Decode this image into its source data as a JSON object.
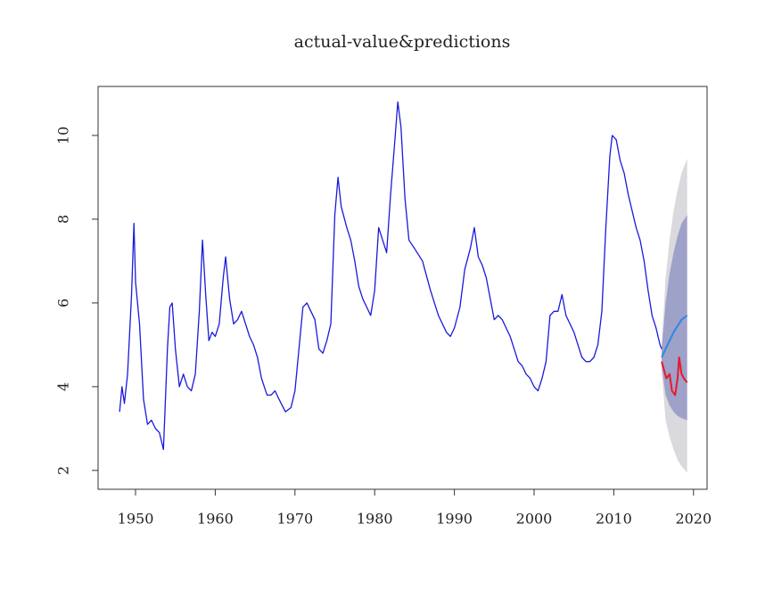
{
  "chart_data": {
    "type": "line",
    "title": "actual-value&predictions",
    "xlim": [
      1945.3,
      2021.7
    ],
    "ylim": [
      1.55,
      11.17
    ],
    "xticks": [
      1950,
      1960,
      1970,
      1980,
      1990,
      2000,
      2010,
      2020
    ],
    "yticks": [
      2,
      4,
      6,
      8,
      10
    ],
    "bands": [
      {
        "color": "#d9d9de",
        "x": [
          2016.0,
          2016.5,
          2017.0,
          2017.5,
          2018.0,
          2018.5,
          2019.2
        ],
        "lower": [
          4.4,
          3.2,
          2.8,
          2.5,
          2.25,
          2.1,
          1.95
        ],
        "upper": [
          5.0,
          6.6,
          7.5,
          8.2,
          8.7,
          9.1,
          9.45
        ]
      },
      {
        "color": "#9ea1c8",
        "x": [
          2016.0,
          2016.5,
          2017.0,
          2017.5,
          2018.0,
          2018.5,
          2019.2
        ],
        "lower": [
          4.5,
          3.8,
          3.55,
          3.4,
          3.3,
          3.25,
          3.2
        ],
        "upper": [
          4.9,
          6.0,
          6.7,
          7.2,
          7.6,
          7.9,
          8.1
        ]
      }
    ],
    "series": [
      {
        "color": "#1a1adb",
        "x": [
          1948.0,
          1948.3,
          1948.6,
          1949.0,
          1949.5,
          1949.8,
          1950.0,
          1950.5,
          1951.0,
          1951.5,
          1952.0,
          1952.5,
          1953.0,
          1953.5,
          1954.0,
          1954.3,
          1954.6,
          1955.0,
          1955.5,
          1956.0,
          1956.5,
          1957.0,
          1957.5,
          1958.0,
          1958.4,
          1958.8,
          1959.2,
          1959.6,
          1960.0,
          1960.5,
          1961.0,
          1961.3,
          1961.8,
          1962.3,
          1962.8,
          1963.3,
          1963.8,
          1964.3,
          1964.8,
          1965.3,
          1965.8,
          1966.5,
          1967.0,
          1967.5,
          1968.0,
          1968.8,
          1969.5,
          1970.0,
          1970.5,
          1971.0,
          1971.5,
          1972.0,
          1972.5,
          1973.0,
          1973.5,
          1974.0,
          1974.5,
          1975.0,
          1975.4,
          1975.8,
          1976.5,
          1977.0,
          1977.5,
          1978.0,
          1978.5,
          1979.0,
          1979.5,
          1980.0,
          1980.5,
          1981.0,
          1981.5,
          1982.0,
          1982.5,
          1982.9,
          1983.3,
          1983.8,
          1984.3,
          1985.0,
          1986.0,
          1987.0,
          1987.5,
          1988.0,
          1989.0,
          1989.5,
          1990.0,
          1990.7,
          1991.3,
          1992.0,
          1992.5,
          1993.0,
          1993.5,
          1994.0,
          1994.5,
          1995.0,
          1995.5,
          1996.0,
          1996.5,
          1997.0,
          1997.5,
          1998.0,
          1998.5,
          1999.0,
          1999.5,
          2000.0,
          2000.5,
          2001.0,
          2001.5,
          2002.0,
          2002.5,
          2003.0,
          2003.5,
          2004.0,
          2004.5,
          2005.0,
          2005.5,
          2006.0,
          2006.5,
          2007.0,
          2007.5,
          2008.0,
          2008.5,
          2009.0,
          2009.5,
          2009.8,
          2010.3,
          2010.8,
          2011.3,
          2011.8,
          2012.3,
          2012.8,
          2013.3,
          2013.8,
          2014.3,
          2014.8,
          2015.3,
          2015.8,
          2016.0
        ],
        "values": [
          3.4,
          4.0,
          3.6,
          4.3,
          6.2,
          7.9,
          6.5,
          5.5,
          3.7,
          3.1,
          3.2,
          3.0,
          2.9,
          2.5,
          4.9,
          5.9,
          6.0,
          4.9,
          4.0,
          4.3,
          4.0,
          3.9,
          4.3,
          5.8,
          7.5,
          6.2,
          5.1,
          5.3,
          5.2,
          5.5,
          6.6,
          7.1,
          6.1,
          5.5,
          5.6,
          5.8,
          5.5,
          5.2,
          5.0,
          4.7,
          4.2,
          3.8,
          3.8,
          3.9,
          3.7,
          3.4,
          3.5,
          3.9,
          4.9,
          5.9,
          6.0,
          5.8,
          5.6,
          4.9,
          4.8,
          5.1,
          5.5,
          8.1,
          9.0,
          8.3,
          7.8,
          7.5,
          7.0,
          6.4,
          6.1,
          5.9,
          5.7,
          6.3,
          7.8,
          7.5,
          7.2,
          8.6,
          9.8,
          10.8,
          10.2,
          8.5,
          7.5,
          7.3,
          7.0,
          6.3,
          6.0,
          5.7,
          5.3,
          5.2,
          5.4,
          5.9,
          6.8,
          7.3,
          7.8,
          7.1,
          6.9,
          6.6,
          6.1,
          5.6,
          5.7,
          5.6,
          5.4,
          5.2,
          4.9,
          4.6,
          4.5,
          4.3,
          4.2,
          4.0,
          3.9,
          4.2,
          4.6,
          5.7,
          5.8,
          5.8,
          6.2,
          5.7,
          5.5,
          5.3,
          5.0,
          4.7,
          4.6,
          4.6,
          4.7,
          5.0,
          5.8,
          7.8,
          9.5,
          10.0,
          9.9,
          9.4,
          9.1,
          8.6,
          8.2,
          7.8,
          7.5,
          7.0,
          6.3,
          5.7,
          5.4,
          5.0,
          4.9
        ]
      },
      {
        "color": "#e8192c",
        "x": [
          2016.0,
          2016.3,
          2016.6,
          2017.0,
          2017.3,
          2017.7,
          2018.0,
          2018.2,
          2018.5,
          2018.8,
          2019.2
        ],
        "values": [
          4.6,
          4.4,
          4.2,
          4.3,
          3.9,
          3.8,
          4.2,
          4.7,
          4.3,
          4.2,
          4.1
        ]
      },
      {
        "color": "#2f86e8",
        "x": [
          2016.0,
          2016.5,
          2017.0,
          2017.5,
          2018.0,
          2018.5,
          2019.2
        ],
        "values": [
          4.7,
          4.9,
          5.1,
          5.3,
          5.45,
          5.6,
          5.7
        ]
      }
    ]
  }
}
